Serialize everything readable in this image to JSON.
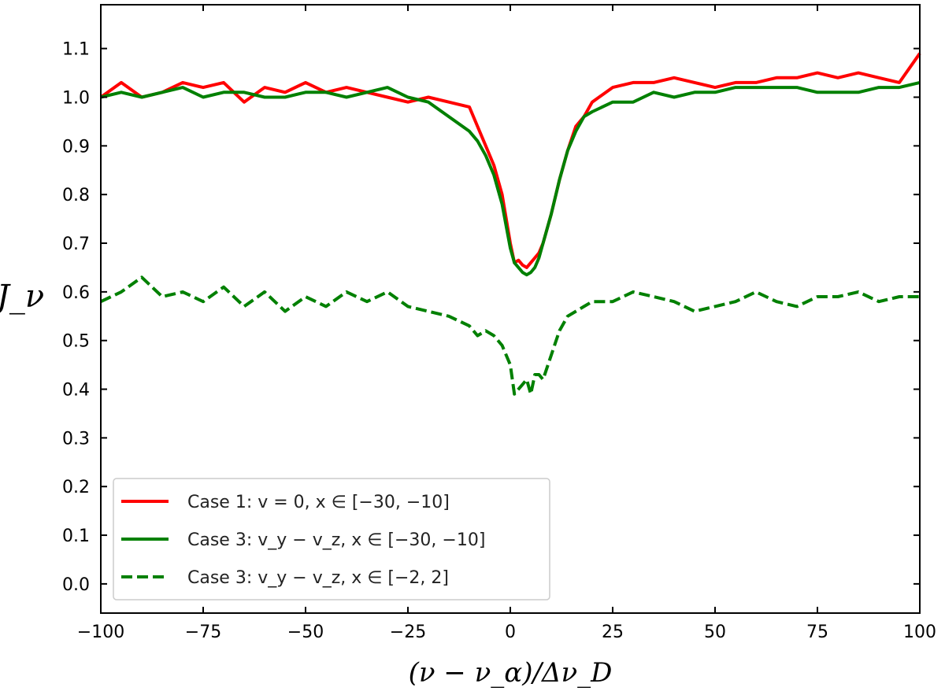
{
  "chart_data": {
    "type": "line",
    "title": "",
    "xlabel": "(ν − ν_α)/Δν_D",
    "ylabel": "J_ν",
    "xlim": [
      -100,
      100
    ],
    "ylim": [
      -0.06,
      1.19
    ],
    "x_ticks": [
      -100,
      -75,
      -50,
      -25,
      0,
      25,
      50,
      75,
      100
    ],
    "x_tick_labels": [
      "−100",
      "−75",
      "−50",
      "−25",
      "0",
      "25",
      "50",
      "75",
      "100"
    ],
    "y_ticks": [
      0.0,
      0.1,
      0.2,
      0.3,
      0.4,
      0.5,
      0.6,
      0.7,
      0.8,
      0.9,
      1.0,
      1.1
    ],
    "y_tick_labels": [
      "0.0",
      "0.1",
      "0.2",
      "0.3",
      "0.4",
      "0.5",
      "0.6",
      "0.7",
      "0.8",
      "0.9",
      "1.0",
      "1.1"
    ],
    "grid": false,
    "legend_position": "lower-left",
    "x": [
      -100,
      -95,
      -90,
      -85,
      -80,
      -75,
      -70,
      -65,
      -60,
      -55,
      -50,
      -45,
      -40,
      -35,
      -30,
      -25,
      -20,
      -15,
      -10,
      -8,
      -6,
      -4,
      -2,
      0,
      1,
      2,
      3,
      4,
      5,
      6,
      7,
      8,
      10,
      12,
      14,
      16,
      18,
      20,
      25,
      30,
      35,
      40,
      45,
      50,
      55,
      60,
      65,
      70,
      75,
      80,
      85,
      90,
      95,
      100
    ],
    "series": [
      {
        "name": "Case 1: v = 0, x ∈ [−30, −10]",
        "color": "#ff0000",
        "dash": "solid",
        "values": [
          1.0,
          1.03,
          1.0,
          1.01,
          1.03,
          1.02,
          1.03,
          0.99,
          1.02,
          1.01,
          1.03,
          1.01,
          1.02,
          1.01,
          1.0,
          0.99,
          1.0,
          0.99,
          0.98,
          0.94,
          0.9,
          0.86,
          0.8,
          0.7,
          0.66,
          0.665,
          0.655,
          0.65,
          0.66,
          0.67,
          0.68,
          0.7,
          0.76,
          0.83,
          0.89,
          0.94,
          0.96,
          0.99,
          1.02,
          1.03,
          1.03,
          1.04,
          1.03,
          1.02,
          1.03,
          1.03,
          1.04,
          1.04,
          1.05,
          1.04,
          1.05,
          1.04,
          1.03,
          1.09
        ]
      },
      {
        "name": "Case 3: v_y − v_z, x ∈ [−30, −10]",
        "color": "#008000",
        "dash": "solid",
        "values": [
          1.0,
          1.01,
          1.0,
          1.01,
          1.02,
          1.0,
          1.01,
          1.01,
          1.0,
          1.0,
          1.01,
          1.01,
          1.0,
          1.01,
          1.02,
          1.0,
          0.99,
          0.96,
          0.93,
          0.91,
          0.88,
          0.84,
          0.78,
          0.69,
          0.66,
          0.65,
          0.64,
          0.635,
          0.64,
          0.65,
          0.67,
          0.7,
          0.76,
          0.83,
          0.89,
          0.93,
          0.96,
          0.97,
          0.99,
          0.99,
          1.01,
          1.0,
          1.01,
          1.01,
          1.02,
          1.02,
          1.02,
          1.02,
          1.01,
          1.01,
          1.01,
          1.02,
          1.02,
          1.03
        ]
      },
      {
        "name": "Case 3: v_y − v_z, x ∈ [−2, 2]",
        "color": "#008000",
        "dash": "dashed",
        "values": [
          0.58,
          0.6,
          0.63,
          0.59,
          0.6,
          0.58,
          0.61,
          0.57,
          0.6,
          0.56,
          0.59,
          0.57,
          0.6,
          0.58,
          0.6,
          0.57,
          0.56,
          0.55,
          0.53,
          0.51,
          0.52,
          0.51,
          0.49,
          0.45,
          0.39,
          0.4,
          0.41,
          0.42,
          0.39,
          0.43,
          0.43,
          0.42,
          0.47,
          0.52,
          0.55,
          0.56,
          0.57,
          0.58,
          0.58,
          0.6,
          0.59,
          0.58,
          0.56,
          0.57,
          0.58,
          0.6,
          0.58,
          0.57,
          0.59,
          0.59,
          0.6,
          0.58,
          0.59,
          0.59
        ]
      }
    ]
  }
}
